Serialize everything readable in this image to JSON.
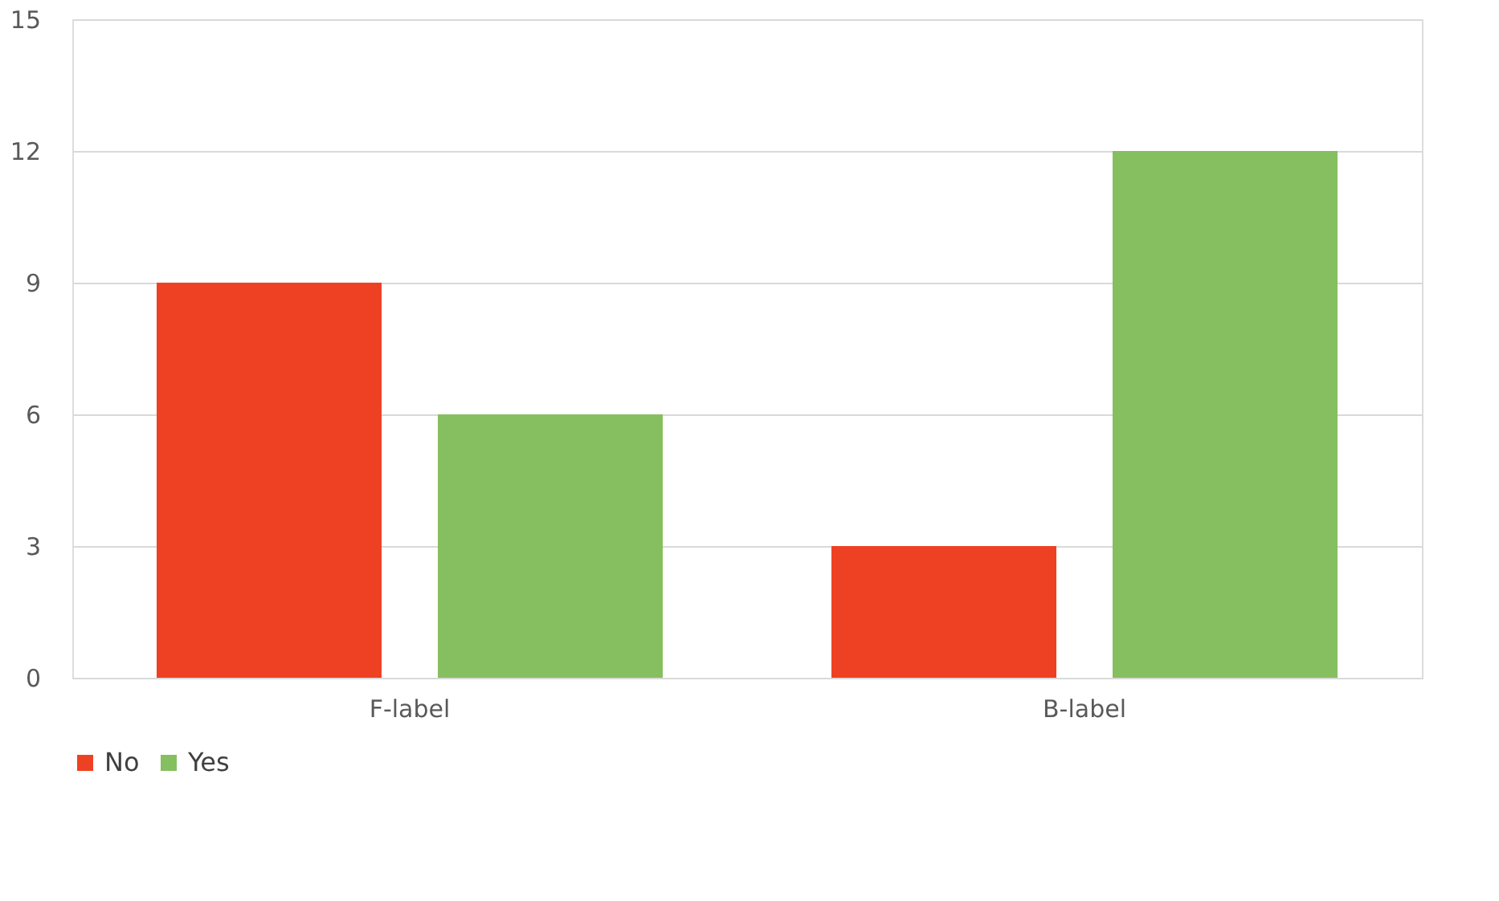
{
  "chart_data": {
    "type": "bar",
    "categories": [
      "F-label",
      "B-label"
    ],
    "series": [
      {
        "name": "No",
        "color": "#ee4123",
        "values": [
          9,
          3
        ]
      },
      {
        "name": "Yes",
        "color": "#86bf5f",
        "values": [
          6,
          12
        ]
      }
    ],
    "ylim": [
      0,
      15
    ],
    "yticks": [
      0,
      3,
      6,
      9,
      12,
      15
    ],
    "grid": "y",
    "legend": "bottom"
  }
}
